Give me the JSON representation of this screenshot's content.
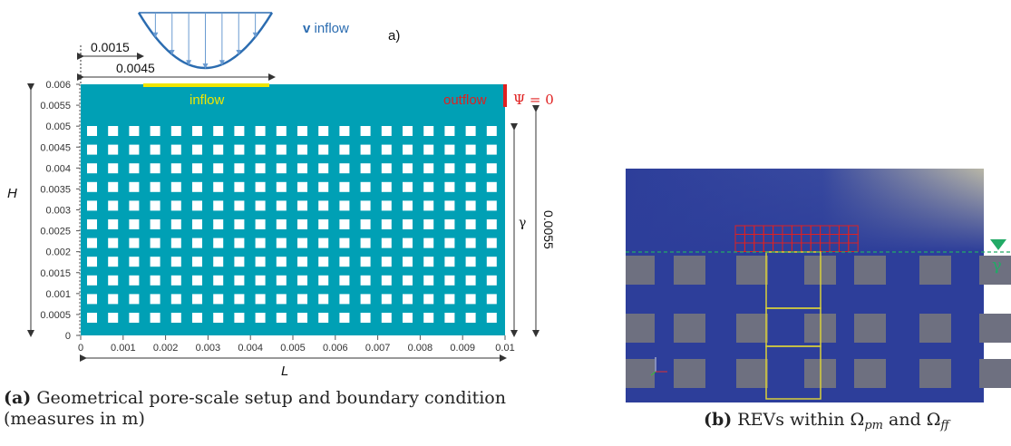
{
  "panel_a": {
    "label": "a)",
    "inflow_profile_label_bold": "v",
    "inflow_profile_label": " inflow",
    "dim_offset": "0.0015",
    "dim_width": "0.0045",
    "inflow_label": "inflow",
    "outflow_label": "outflow",
    "psi_label": "Ψ = 0",
    "h_label": "H",
    "l_label": "L",
    "gamma_label": "γ",
    "height_dim": "0.0055",
    "y_ticks": [
      "0.006",
      "0.0055",
      "0.005",
      "0.0045",
      "0.004",
      "0.0035",
      "0.003",
      "0.0025",
      "0.002",
      "0.0015",
      "0.001",
      "0.0005",
      "0"
    ],
    "x_ticks": [
      "0",
      "0.001",
      "0.002",
      "0.003",
      "0.004",
      "0.005",
      "0.006",
      "0.007",
      "0.008",
      "0.009",
      "0.01"
    ],
    "colors": {
      "domain": "#00a0b5",
      "inflow": "#f0e600",
      "outflow": "#e02020",
      "profile": "#2b6cb0"
    },
    "grain_rows": 11,
    "grain_cols": 20
  },
  "panel_b": {
    "gamma_label": "γ",
    "colors": {
      "background": "#2d3e9a",
      "grain": "#6e7080",
      "rev": "#d8cf3a",
      "grid": "#e02020",
      "interface": "#22aa66"
    }
  },
  "captions": {
    "a_tag": "(a)",
    "a_text": " Geometrical pore-scale setup and boundary condition (measures in m)",
    "b_tag": "(b)",
    "b_text": " REVs within Ω",
    "b_sub1": "pm",
    "b_mid": " and Ω",
    "b_sub2": "ff"
  }
}
